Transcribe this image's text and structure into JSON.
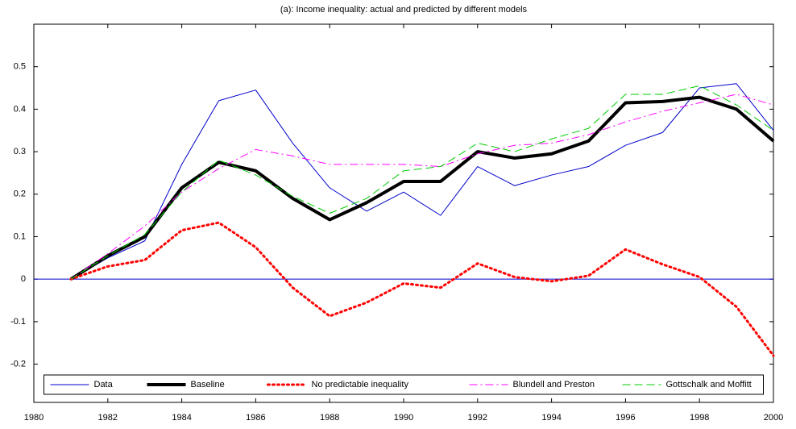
{
  "chart_data": {
    "type": "line",
    "title": "(a): Income inequality: actual and predicted by different models",
    "x": [
      1981,
      1982,
      1983,
      1984,
      1985,
      1986,
      1987,
      1988,
      1989,
      1990,
      1991,
      1992,
      1993,
      1994,
      1995,
      1996,
      1997,
      1998,
      1999,
      2000
    ],
    "series": [
      {
        "name": "Data",
        "color": "#0000cc",
        "width": 1,
        "dash": "solid",
        "values": [
          0,
          0.05,
          0.09,
          0.27,
          0.42,
          0.445,
          0.32,
          0.215,
          0.16,
          0.205,
          0.15,
          0.265,
          0.22,
          0.245,
          0.265,
          0.315,
          0.345,
          0.45,
          0.46,
          0.35
        ]
      },
      {
        "name": "Baseline",
        "color": "#000000",
        "width": 4,
        "dash": "solid",
        "values": [
          0,
          0.055,
          0.1,
          0.215,
          0.275,
          0.255,
          0.19,
          0.14,
          0.18,
          0.23,
          0.23,
          0.3,
          0.285,
          0.295,
          0.325,
          0.415,
          0.418,
          0.428,
          0.4,
          0.325
        ]
      },
      {
        "name": "No predictable inequality",
        "color": "#ff0000",
        "width": 3,
        "dash": "dotted",
        "values": [
          0,
          0.03,
          0.045,
          0.115,
          0.133,
          0.075,
          -0.02,
          -0.087,
          -0.055,
          -0.01,
          -0.02,
          0.037,
          0.005,
          -0.005,
          0.008,
          0.07,
          0.035,
          0.005,
          -0.065,
          -0.18
        ]
      },
      {
        "name": "Blundell and Preston",
        "color": "#ff00ff",
        "width": 1,
        "dash": "dashdot",
        "values": [
          0,
          0.06,
          0.125,
          0.205,
          0.26,
          0.305,
          0.29,
          0.27,
          0.27,
          0.27,
          0.265,
          0.295,
          0.315,
          0.32,
          0.34,
          0.37,
          0.395,
          0.415,
          0.435,
          0.41
        ]
      },
      {
        "name": "Gottschalk and Moffitt",
        "color": "#00cc00",
        "width": 1,
        "dash": "dashed",
        "values": [
          0,
          0.055,
          0.105,
          0.205,
          0.28,
          0.245,
          0.195,
          0.155,
          0.19,
          0.255,
          0.265,
          0.32,
          0.3,
          0.33,
          0.355,
          0.435,
          0.435,
          0.455,
          0.41,
          0.35
        ]
      }
    ],
    "xlim": [
      1980,
      2000
    ],
    "xticks": [
      1980,
      1982,
      1984,
      1986,
      1988,
      1990,
      1992,
      1994,
      1996,
      1998,
      2000
    ],
    "ylim": [
      -0.29,
      0.6
    ],
    "yticks": [
      -0.2,
      -0.1,
      0,
      0.1,
      0.2,
      0.3,
      0.4,
      0.5
    ],
    "zero_line": true,
    "zero_line_color": "#0000cc",
    "legend": "lower center",
    "grid": false
  }
}
